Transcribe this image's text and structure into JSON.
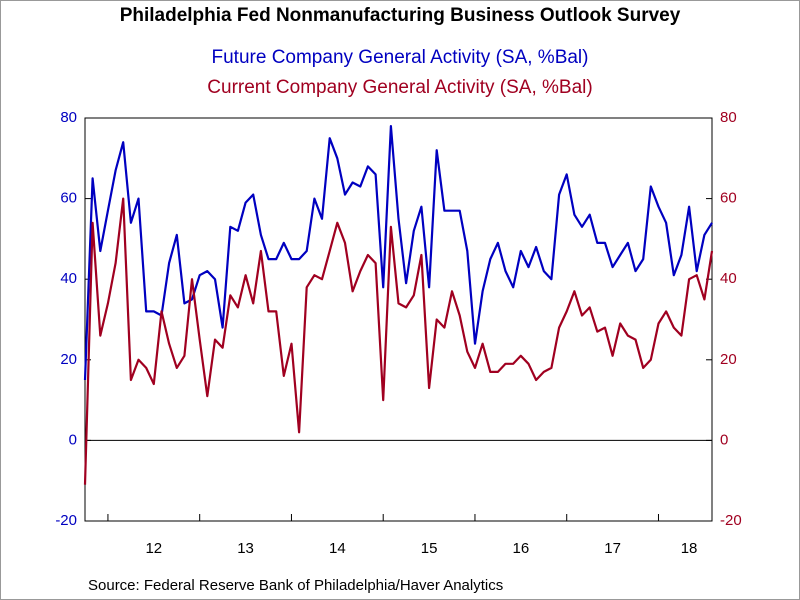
{
  "chart_data": {
    "type": "line",
    "title": "Philadelphia Fed Nonmanufacturing Business Outlook Survey",
    "subtitles": [
      "Future Company General Activity (SA, %Bal)",
      "Current Company General Activity (SA, %Bal)"
    ],
    "source": "Source:  Federal Reserve Bank of Philadelphia/Haver Analytics",
    "categories": [
      null,
      null,
      null,
      null,
      null,
      null,
      null,
      null,
      null,
      "12",
      null,
      null,
      null,
      null,
      null,
      null,
      null,
      null,
      null,
      null,
      null,
      "13",
      null,
      null,
      null,
      null,
      null,
      null,
      null,
      null,
      null,
      null,
      null,
      "14",
      null,
      null,
      null,
      null,
      null,
      null,
      null,
      null,
      null,
      null,
      null,
      "15",
      null,
      null,
      null,
      null,
      null,
      null,
      null,
      null,
      null,
      null,
      null,
      "16",
      null,
      null,
      null,
      null,
      null,
      null,
      null,
      null,
      null,
      null,
      null,
      "17",
      null,
      null,
      null,
      null,
      null,
      null,
      null,
      null,
      null,
      "18",
      null,
      null,
      null
    ],
    "series": [
      {
        "name": "Future Company General Activity (SA, %Bal)",
        "color": "#0000c0",
        "values": [
          15,
          65,
          47,
          57,
          67,
          74,
          54,
          60,
          32,
          32,
          31,
          44,
          51,
          34,
          35,
          41,
          42,
          40,
          28,
          53,
          52,
          59,
          61,
          51,
          45,
          45,
          49,
          45,
          45,
          47,
          60,
          55,
          75,
          70,
          61,
          64,
          63,
          68,
          66,
          38,
          78,
          55,
          39,
          52,
          58,
          38,
          72,
          57,
          57,
          57,
          47,
          24,
          37,
          45,
          49,
          42,
          38,
          47,
          43,
          48,
          42,
          40,
          61,
          66,
          56,
          53,
          56,
          49,
          49,
          43,
          46,
          49,
          42,
          45,
          63,
          58,
          54,
          41,
          46,
          58,
          42,
          51,
          54
        ]
      },
      {
        "name": "Current Company General Activity (SA, %Bal)",
        "color": "#a00020",
        "axis": "y2",
        "values": [
          -11,
          54,
          26,
          34,
          44,
          60,
          15,
          20,
          18,
          14,
          32,
          24,
          18,
          21,
          40,
          25,
          11,
          25,
          23,
          36,
          33,
          41,
          34,
          47,
          32,
          32,
          16,
          24,
          2,
          38,
          41,
          40,
          47,
          54,
          49,
          37,
          42,
          46,
          44,
          10,
          53,
          34,
          33,
          36,
          46,
          13,
          30,
          28,
          37,
          31,
          22,
          18,
          24,
          17,
          17,
          19,
          19,
          21,
          19,
          15,
          17,
          18,
          28,
          32,
          37,
          31,
          33,
          27,
          28,
          21,
          29,
          26,
          25,
          18,
          20,
          29,
          32,
          28,
          26,
          40,
          41,
          35,
          47
        ]
      }
    ],
    "ylim": [
      -20,
      80
    ],
    "yticks": [
      -20,
      0,
      20,
      40,
      60,
      80
    ],
    "y2lim": [
      -20,
      80
    ],
    "y2ticks": [
      -20,
      0,
      20,
      40,
      60,
      80
    ]
  }
}
